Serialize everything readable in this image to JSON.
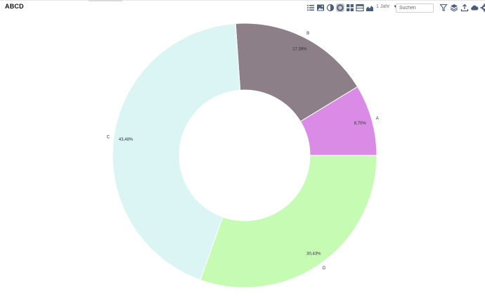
{
  "app": {
    "title": "ABCD"
  },
  "toolbar": {
    "icons": [
      {
        "name": "list-view-icon"
      },
      {
        "name": "image-view-icon"
      },
      {
        "name": "pie-chart-icon"
      },
      {
        "name": "donut-chart-icon",
        "active": true
      },
      {
        "name": "grid-view-icon"
      },
      {
        "name": "table-view-icon"
      },
      {
        "name": "area-chart-icon"
      }
    ],
    "period_label": "1 Jahr",
    "search_placeholder": "Suchen",
    "right_icons": [
      {
        "name": "filter-icon"
      },
      {
        "name": "layers-icon"
      },
      {
        "name": "export-icon"
      },
      {
        "name": "cloud-icon"
      },
      {
        "name": "gear-icon"
      }
    ]
  },
  "chart_data": {
    "type": "pie",
    "donut": true,
    "title": "",
    "slices": [
      {
        "label": "A",
        "percent_label": "8,70%",
        "value": 8.7,
        "color": "#d98be6"
      },
      {
        "label": "B",
        "percent_label": "17,39%",
        "value": 17.39,
        "color": "#8c7f87"
      },
      {
        "label": "C",
        "percent_label": "43,48%",
        "value": 43.48,
        "color": "#dbf5f4"
      },
      {
        "label": "D",
        "percent_label": "30,43%",
        "value": 30.43,
        "color": "#c6fbb4"
      }
    ]
  }
}
